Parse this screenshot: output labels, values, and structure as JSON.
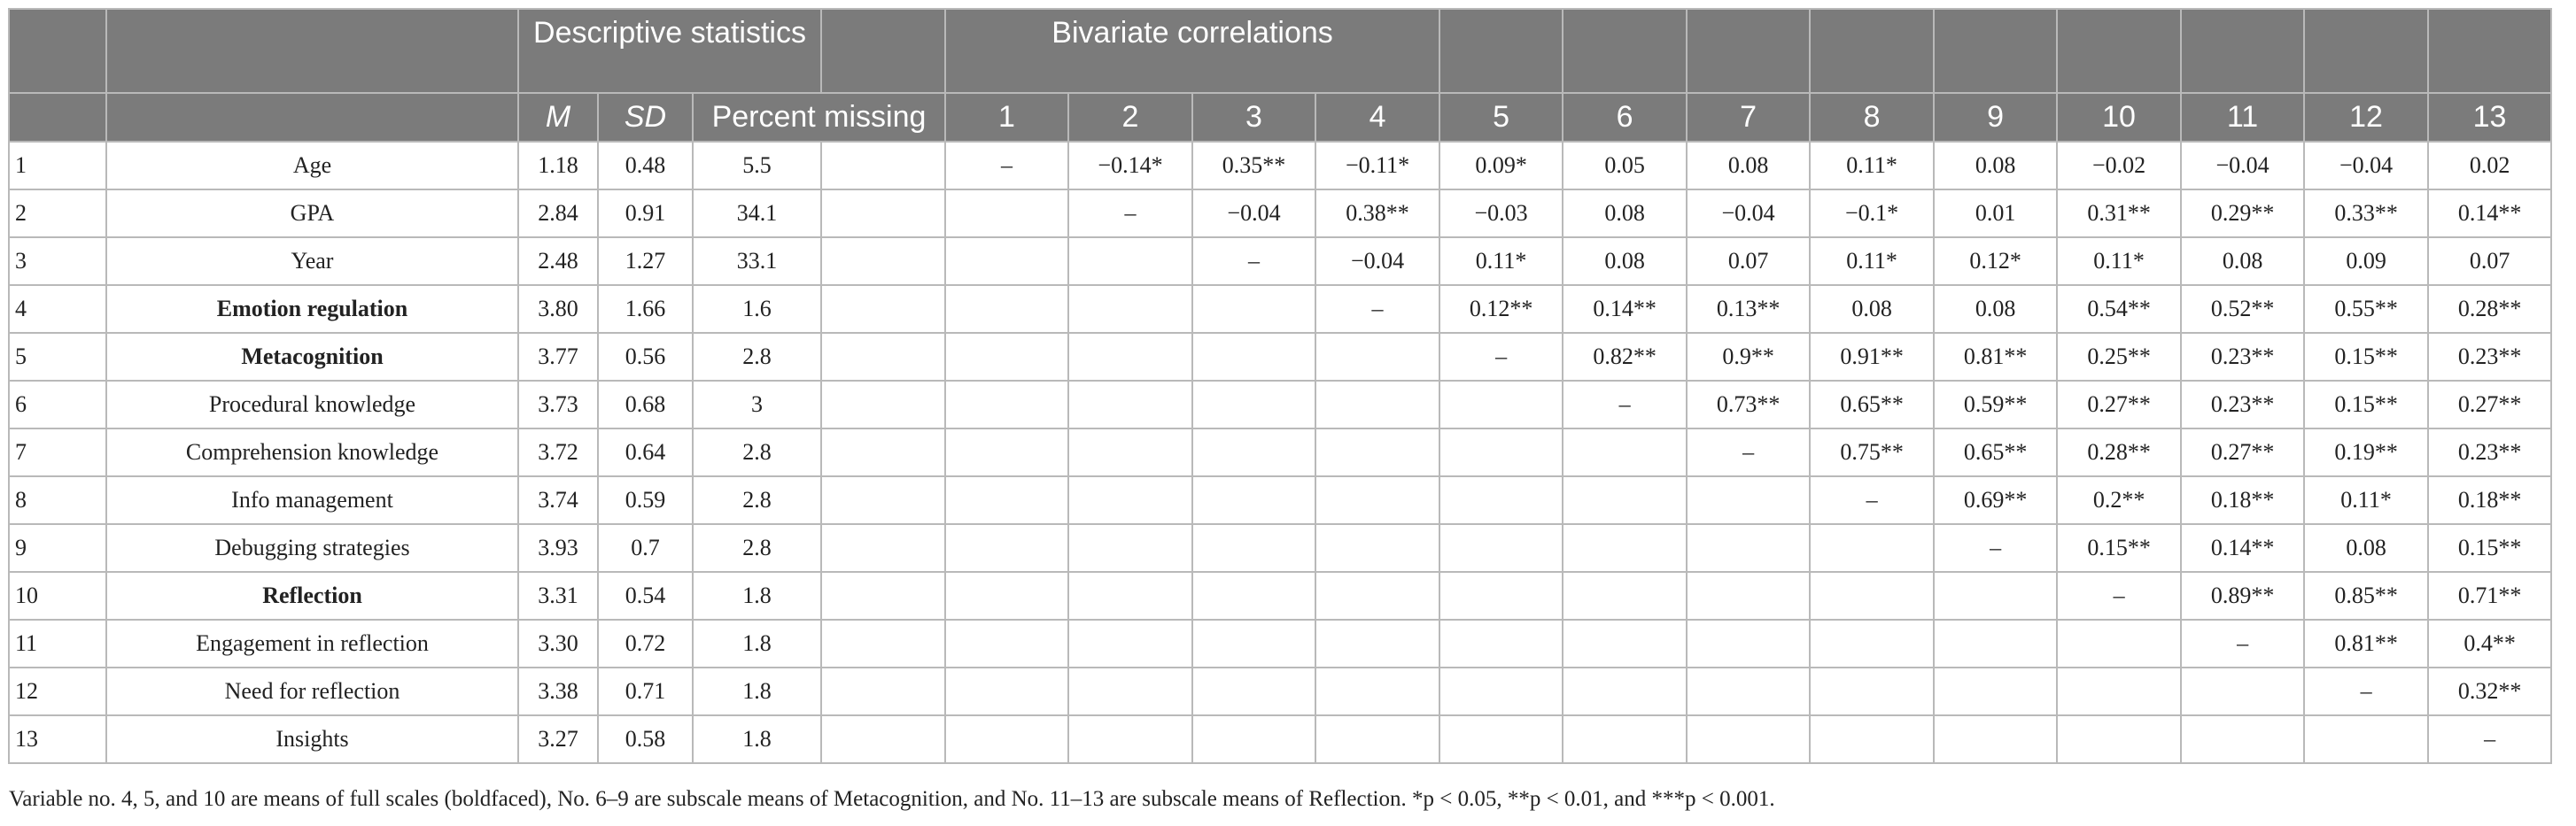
{
  "header": {
    "descriptive_label": "Descriptive statistics",
    "bivariate_label": "Bivariate correlations",
    "columns": {
      "m": "M",
      "sd": "SD",
      "missing": "Percent missing",
      "corr": [
        "1",
        "2",
        "3",
        "4",
        "5",
        "6",
        "7",
        "8",
        "9",
        "10",
        "11",
        "12",
        "13"
      ]
    }
  },
  "rows": [
    {
      "num": "1",
      "variable": "Age",
      "m": "1.18",
      "sd": "0.48",
      "missing": "5.5",
      "bold": false,
      "corr": [
        "–",
        "−0.14*",
        "0.35**",
        "−0.11*",
        "0.09*",
        "0.05",
        "0.08",
        "0.11*",
        "0.08",
        "−0.02",
        "−0.04",
        "−0.04",
        "0.02"
      ]
    },
    {
      "num": "2",
      "variable": "GPA",
      "m": "2.84",
      "sd": "0.91",
      "missing": "34.1",
      "bold": false,
      "corr": [
        "",
        "–",
        "−0.04",
        "0.38**",
        "−0.03",
        "0.08",
        "−0.04",
        "−0.1*",
        "0.01",
        "0.31**",
        "0.29**",
        "0.33**",
        "0.14**"
      ]
    },
    {
      "num": "3",
      "variable": "Year",
      "m": "2.48",
      "sd": "1.27",
      "missing": "33.1",
      "bold": false,
      "corr": [
        "",
        "",
        "–",
        "−0.04",
        "0.11*",
        "0.08",
        "0.07",
        "0.11*",
        "0.12*",
        "0.11*",
        "0.08",
        "0.09",
        "0.07"
      ]
    },
    {
      "num": "4",
      "variable": "Emotion regulation",
      "m": "3.80",
      "sd": "1.66",
      "missing": "1.6",
      "bold": true,
      "corr": [
        "",
        "",
        "",
        "–",
        "0.12**",
        "0.14**",
        "0.13**",
        "0.08",
        "0.08",
        "0.54**",
        "0.52**",
        "0.55**",
        "0.28**"
      ]
    },
    {
      "num": "5",
      "variable": "Metacognition",
      "m": "3.77",
      "sd": "0.56",
      "missing": "2.8",
      "bold": true,
      "corr": [
        "",
        "",
        "",
        "",
        "–",
        "0.82**",
        "0.9**",
        "0.91**",
        "0.81**",
        "0.25**",
        "0.23**",
        "0.15**",
        "0.23**"
      ]
    },
    {
      "num": "6",
      "variable": "Procedural knowledge",
      "m": "3.73",
      "sd": "0.68",
      "missing": "3",
      "bold": false,
      "corr": [
        "",
        "",
        "",
        "",
        "",
        "–",
        "0.73**",
        "0.65**",
        "0.59**",
        "0.27**",
        "0.23**",
        "0.15**",
        "0.27**"
      ]
    },
    {
      "num": "7",
      "variable": "Comprehension knowledge",
      "m": "3.72",
      "sd": "0.64",
      "missing": "2.8",
      "bold": false,
      "corr": [
        "",
        "",
        "",
        "",
        "",
        "",
        "–",
        "0.75**",
        "0.65**",
        "0.28**",
        "0.27**",
        "0.19**",
        "0.23**"
      ]
    },
    {
      "num": "8",
      "variable": "Info management",
      "m": "3.74",
      "sd": "0.59",
      "missing": "2.8",
      "bold": false,
      "corr": [
        "",
        "",
        "",
        "",
        "",
        "",
        "",
        "–",
        "0.69**",
        "0.2**",
        "0.18**",
        "0.11*",
        "0.18**"
      ]
    },
    {
      "num": "9",
      "variable": "Debugging strategies",
      "m": "3.93",
      "sd": "0.7",
      "missing": "2.8",
      "bold": false,
      "corr": [
        "",
        "",
        "",
        "",
        "",
        "",
        "",
        "",
        "–",
        "0.15**",
        "0.14**",
        "0.08",
        "0.15**"
      ]
    },
    {
      "num": "10",
      "variable": "Reflection",
      "m": "3.31",
      "sd": "0.54",
      "missing": "1.8",
      "bold": true,
      "corr": [
        "",
        "",
        "",
        "",
        "",
        "",
        "",
        "",
        "",
        "–",
        "0.89**",
        "0.85**",
        "0.71**"
      ]
    },
    {
      "num": "11",
      "variable": "Engagement in reflection",
      "m": "3.30",
      "sd": "0.72",
      "missing": "1.8",
      "bold": false,
      "corr": [
        "",
        "",
        "",
        "",
        "",
        "",
        "",
        "",
        "",
        "",
        "–",
        "0.81**",
        "0.4**"
      ]
    },
    {
      "num": "12",
      "variable": "Need for reflection",
      "m": "3.38",
      "sd": "0.71",
      "missing": "1.8",
      "bold": false,
      "corr": [
        "",
        "",
        "",
        "",
        "",
        "",
        "",
        "",
        "",
        "",
        "",
        "–",
        "0.32**"
      ]
    },
    {
      "num": "13",
      "variable": "Insights",
      "m": "3.27",
      "sd": "0.58",
      "missing": "1.8",
      "bold": false,
      "corr": [
        "",
        "",
        "",
        "",
        "",
        "",
        "",
        "",
        "",
        "",
        "",
        "",
        "–"
      ]
    }
  ],
  "footnote": "Variable no. 4, 5, and 10 are means of full scales (boldfaced), No. 6–9 are subscale means of Metacognition, and No. 11–13 are subscale means of Reflection. *p < 0.05, **p < 0.01, and ***p < 0.001."
}
